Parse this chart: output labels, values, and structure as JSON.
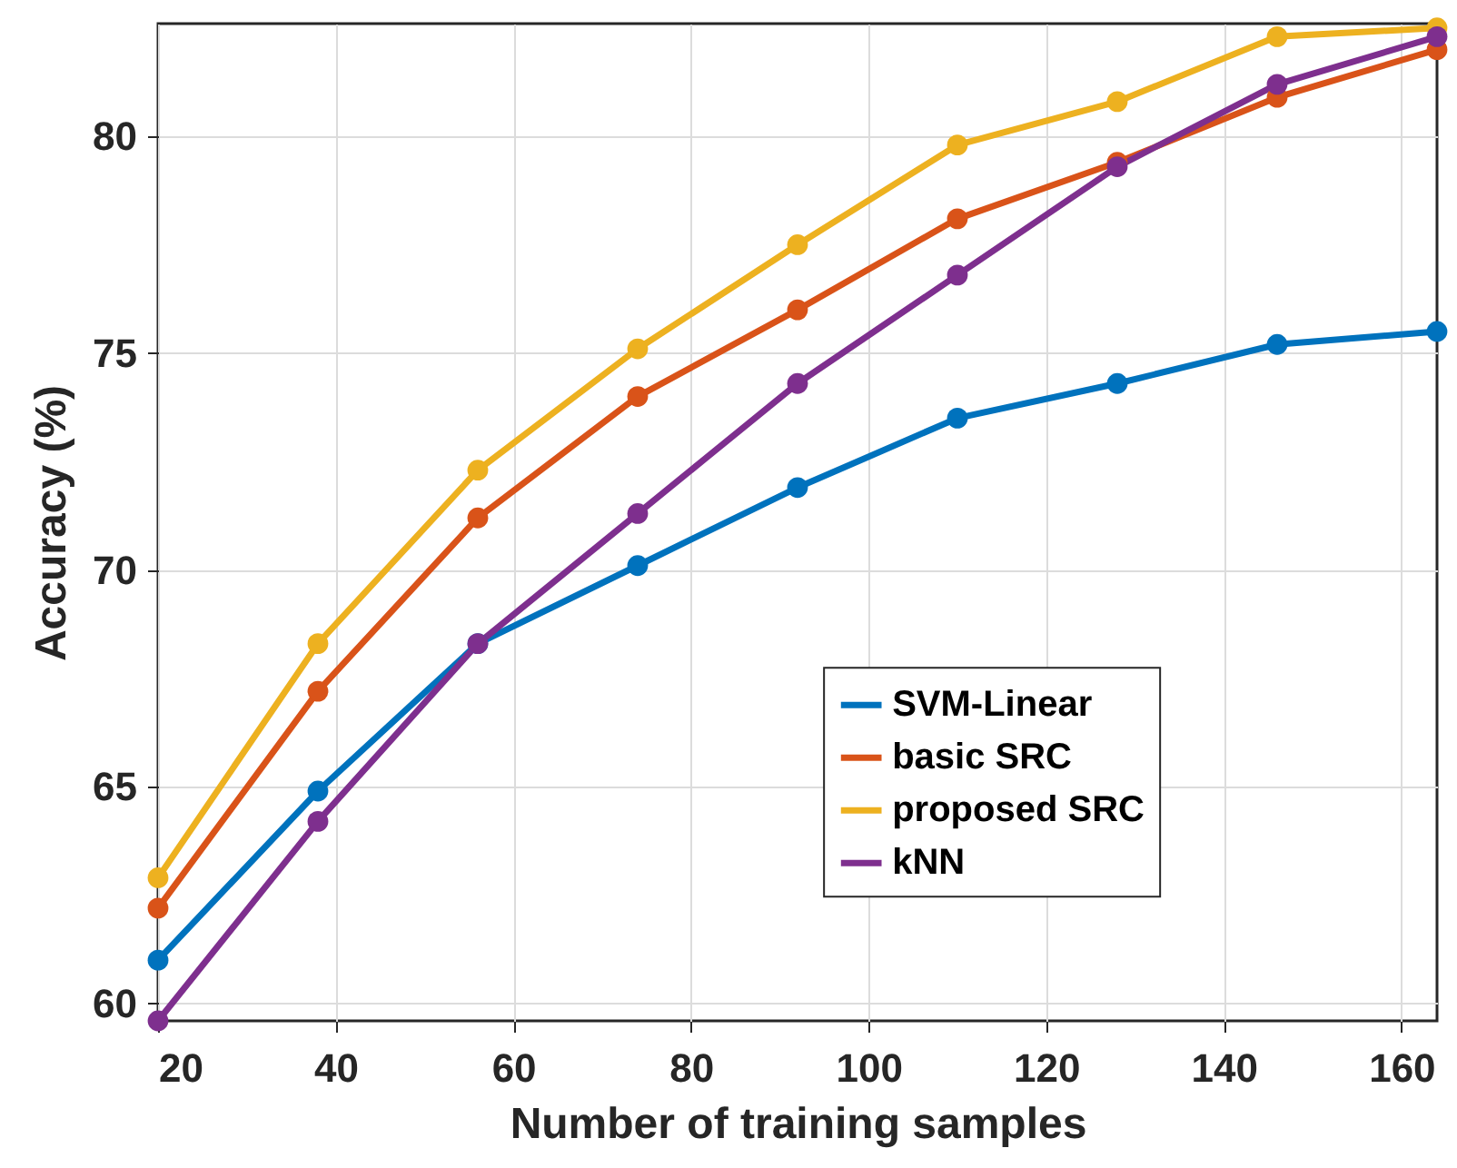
{
  "chart_data": {
    "type": "line",
    "xlabel": "Number of training samples",
    "ylabel": "Accuracy (%)",
    "x": [
      20,
      38,
      56,
      74,
      92,
      110,
      128,
      146,
      164
    ],
    "series": [
      {
        "name": "SVM-Linear",
        "color": "#0072bd",
        "values": [
          61.0,
          64.9,
          68.3,
          70.1,
          71.9,
          73.5,
          74.3,
          75.2,
          75.5
        ]
      },
      {
        "name": "basic SRC",
        "color": "#d95319",
        "values": [
          62.2,
          67.2,
          71.2,
          74.0,
          76.0,
          78.1,
          79.4,
          80.9,
          82.0
        ]
      },
      {
        "name": "proposed SRC",
        "color": "#edb120",
        "values": [
          62.9,
          68.3,
          72.3,
          75.1,
          77.5,
          79.8,
          80.8,
          82.3,
          82.5
        ]
      },
      {
        "name": "kNN",
        "color": "#7e2f8e",
        "values": [
          59.6,
          64.2,
          68.3,
          71.3,
          74.3,
          76.8,
          79.3,
          81.2,
          82.3
        ]
      }
    ],
    "xlim": [
      20,
      164
    ],
    "ylim": [
      59.6,
      82.6
    ],
    "xticks": [
      20,
      40,
      60,
      80,
      100,
      120,
      140,
      160
    ],
    "yticks": [
      60,
      65,
      70,
      75,
      80
    ],
    "grid": true,
    "legend": "right",
    "marker": "circle",
    "line_style": "solid"
  }
}
